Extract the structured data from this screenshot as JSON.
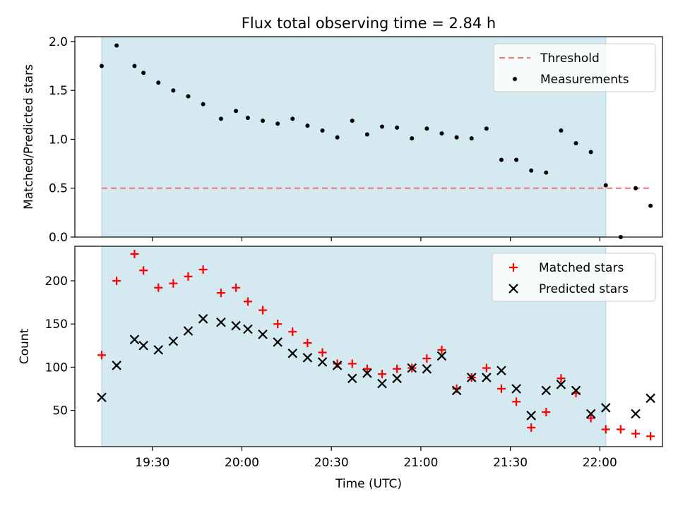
{
  "title": "Flux total observing time = 2.84 h",
  "colors": {
    "shade": "#d4eaf0",
    "shade_edge": "#a8d4e0",
    "threshold": "#f08080",
    "measurement": "#000000",
    "matched": "#ff0000",
    "predicted": "#000000"
  },
  "x_axis": {
    "label": "Time (UTC)",
    "range": [
      "19:04",
      "22:21"
    ],
    "ticks": [
      "19:30",
      "20:00",
      "20:30",
      "21:00",
      "21:30",
      "22:00"
    ],
    "shaded_interval": [
      "19:13",
      "22:02"
    ]
  },
  "chart_data": [
    {
      "type": "scatter",
      "ylabel": "Matched/Predicted stars",
      "ylim": [
        0,
        2.05
      ],
      "yticks": [
        "0.0",
        "0.5",
        "1.0",
        "1.5",
        "2.0"
      ],
      "threshold": 0.5,
      "threshold_range": [
        "19:13",
        "22:17"
      ],
      "legend": {
        "placement": "top-right",
        "entries": [
          "Threshold",
          "Measurements"
        ]
      },
      "series": [
        {
          "name": "Measurements",
          "x": [
            "19:13",
            "19:18",
            "19:24",
            "19:27",
            "19:32",
            "19:37",
            "19:42",
            "19:47",
            "19:53",
            "19:58",
            "20:02",
            "20:07",
            "20:12",
            "20:17",
            "20:22",
            "20:27",
            "20:32",
            "20:37",
            "20:42",
            "20:47",
            "20:52",
            "20:57",
            "21:02",
            "21:07",
            "21:12",
            "21:17",
            "21:22",
            "21:27",
            "21:32",
            "21:37",
            "21:42",
            "21:47",
            "21:52",
            "21:57",
            "22:02",
            "22:07",
            "22:12",
            "22:17"
          ],
          "y": [
            1.75,
            1.96,
            1.75,
            1.68,
            1.58,
            1.5,
            1.44,
            1.36,
            1.21,
            1.29,
            1.22,
            1.19,
            1.16,
            1.21,
            1.14,
            1.09,
            1.02,
            1.19,
            1.05,
            1.13,
            1.12,
            1.01,
            1.11,
            1.06,
            1.02,
            1.01,
            1.11,
            0.79,
            0.79,
            0.68,
            0.66,
            1.09,
            0.96,
            0.87,
            0.53,
            0.0,
            0.5,
            0.32
          ]
        }
      ]
    },
    {
      "type": "scatter",
      "ylabel": "Count",
      "ylim": [
        8,
        240
      ],
      "yticks": [
        "50",
        "100",
        "150",
        "200"
      ],
      "legend": {
        "placement": "top-right",
        "entries": [
          "Matched stars",
          "Predicted stars"
        ]
      },
      "series": [
        {
          "name": "Matched stars",
          "x": [
            "19:13",
            "19:18",
            "19:24",
            "19:27",
            "19:32",
            "19:37",
            "19:42",
            "19:47",
            "19:53",
            "19:58",
            "20:02",
            "20:07",
            "20:12",
            "20:17",
            "20:22",
            "20:27",
            "20:32",
            "20:37",
            "20:42",
            "20:47",
            "20:52",
            "20:57",
            "21:02",
            "21:07",
            "21:12",
            "21:17",
            "21:22",
            "21:27",
            "21:32",
            "21:37",
            "21:42",
            "21:47",
            "21:52",
            "21:57",
            "22:02",
            "22:07",
            "22:12",
            "22:17"
          ],
          "y": [
            114,
            200,
            231,
            212,
            192,
            197,
            205,
            213,
            186,
            192,
            176,
            166,
            150,
            141,
            128,
            117,
            104,
            104,
            98,
            92,
            98,
            99,
            110,
            120,
            75,
            88,
            99,
            75,
            60,
            30,
            48,
            87,
            70,
            41,
            28,
            28,
            23,
            20
          ]
        },
        {
          "name": "Predicted stars",
          "x": [
            "19:13",
            "19:18",
            "19:24",
            "19:27",
            "19:32",
            "19:37",
            "19:42",
            "19:47",
            "19:53",
            "19:58",
            "20:02",
            "20:07",
            "20:12",
            "20:17",
            "20:22",
            "20:27",
            "20:32",
            "20:37",
            "20:42",
            "20:47",
            "20:52",
            "20:57",
            "21:02",
            "21:07",
            "21:12",
            "21:17",
            "21:22",
            "21:27",
            "21:32",
            "21:37",
            "21:42",
            "21:47",
            "21:52",
            "21:57",
            "22:02",
            "22:12",
            "22:17"
          ],
          "y": [
            65,
            102,
            132,
            125,
            120,
            130,
            142,
            156,
            152,
            148,
            144,
            138,
            129,
            116,
            111,
            106,
            102,
            87,
            93,
            81,
            87,
            99,
            98,
            113,
            73,
            88,
            88,
            96,
            75,
            44,
            73,
            80,
            73,
            46,
            53,
            46,
            64
          ]
        }
      ]
    }
  ]
}
